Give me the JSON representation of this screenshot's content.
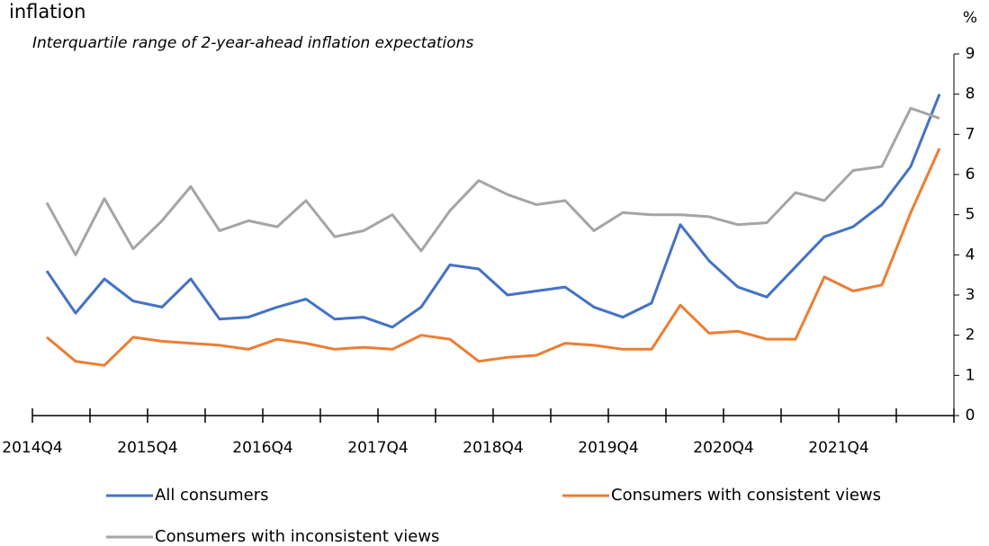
{
  "chart_data": {
    "type": "line",
    "title": "inflation",
    "subtitle": "Interquartile range of 2-year-ahead  inflation expectations",
    "y_unit": "%",
    "categories": [
      "2014Q4",
      null,
      null,
      null,
      "2015Q4",
      null,
      null,
      null,
      "2016Q4",
      null,
      null,
      null,
      "2017Q4",
      null,
      null,
      null,
      "2018Q4",
      null,
      null,
      null,
      "2019Q4",
      null,
      null,
      null,
      "2020Q4",
      null,
      null,
      null,
      "2021Q4",
      null,
      null,
      null
    ],
    "series": [
      {
        "name": "All consumers",
        "color": "#4472c4",
        "values": [
          3.6,
          2.55,
          3.4,
          2.85,
          2.7,
          3.4,
          2.4,
          2.45,
          2.7,
          2.9,
          2.4,
          2.45,
          2.2,
          2.7,
          3.75,
          3.65,
          3.0,
          3.1,
          3.2,
          2.7,
          2.45,
          2.8,
          4.75,
          3.85,
          3.2,
          2.95,
          3.7,
          4.45,
          4.7,
          5.25,
          6.2,
          8.0
        ]
      },
      {
        "name": "Consumers with consistent views",
        "color": "#ed7d31",
        "values": [
          1.95,
          1.35,
          1.25,
          1.95,
          1.85,
          1.8,
          1.75,
          1.65,
          1.9,
          1.8,
          1.65,
          1.7,
          1.65,
          2.0,
          1.9,
          1.35,
          1.45,
          1.5,
          1.8,
          1.75,
          1.65,
          1.65,
          2.75,
          2.05,
          2.1,
          1.9,
          1.9,
          3.45,
          3.1,
          3.25,
          5.05,
          6.65
        ]
      },
      {
        "name": "Consumers with inconsistent views",
        "color": "#a5a5a5",
        "values": [
          5.3,
          4.0,
          5.4,
          4.15,
          4.85,
          5.7,
          4.6,
          4.85,
          4.7,
          5.35,
          4.45,
          4.6,
          5.0,
          4.1,
          5.1,
          5.85,
          5.5,
          5.25,
          5.35,
          4.6,
          5.05,
          5.0,
          5.0,
          4.95,
          4.75,
          4.8,
          5.55,
          5.35,
          6.1,
          6.2,
          7.65,
          7.4
        ]
      }
    ],
    "ylim": [
      0,
      9
    ],
    "yticks": [
      0,
      1,
      2,
      3,
      4,
      5,
      6,
      7,
      8,
      9
    ],
    "grid": false,
    "legend": "bottom"
  }
}
